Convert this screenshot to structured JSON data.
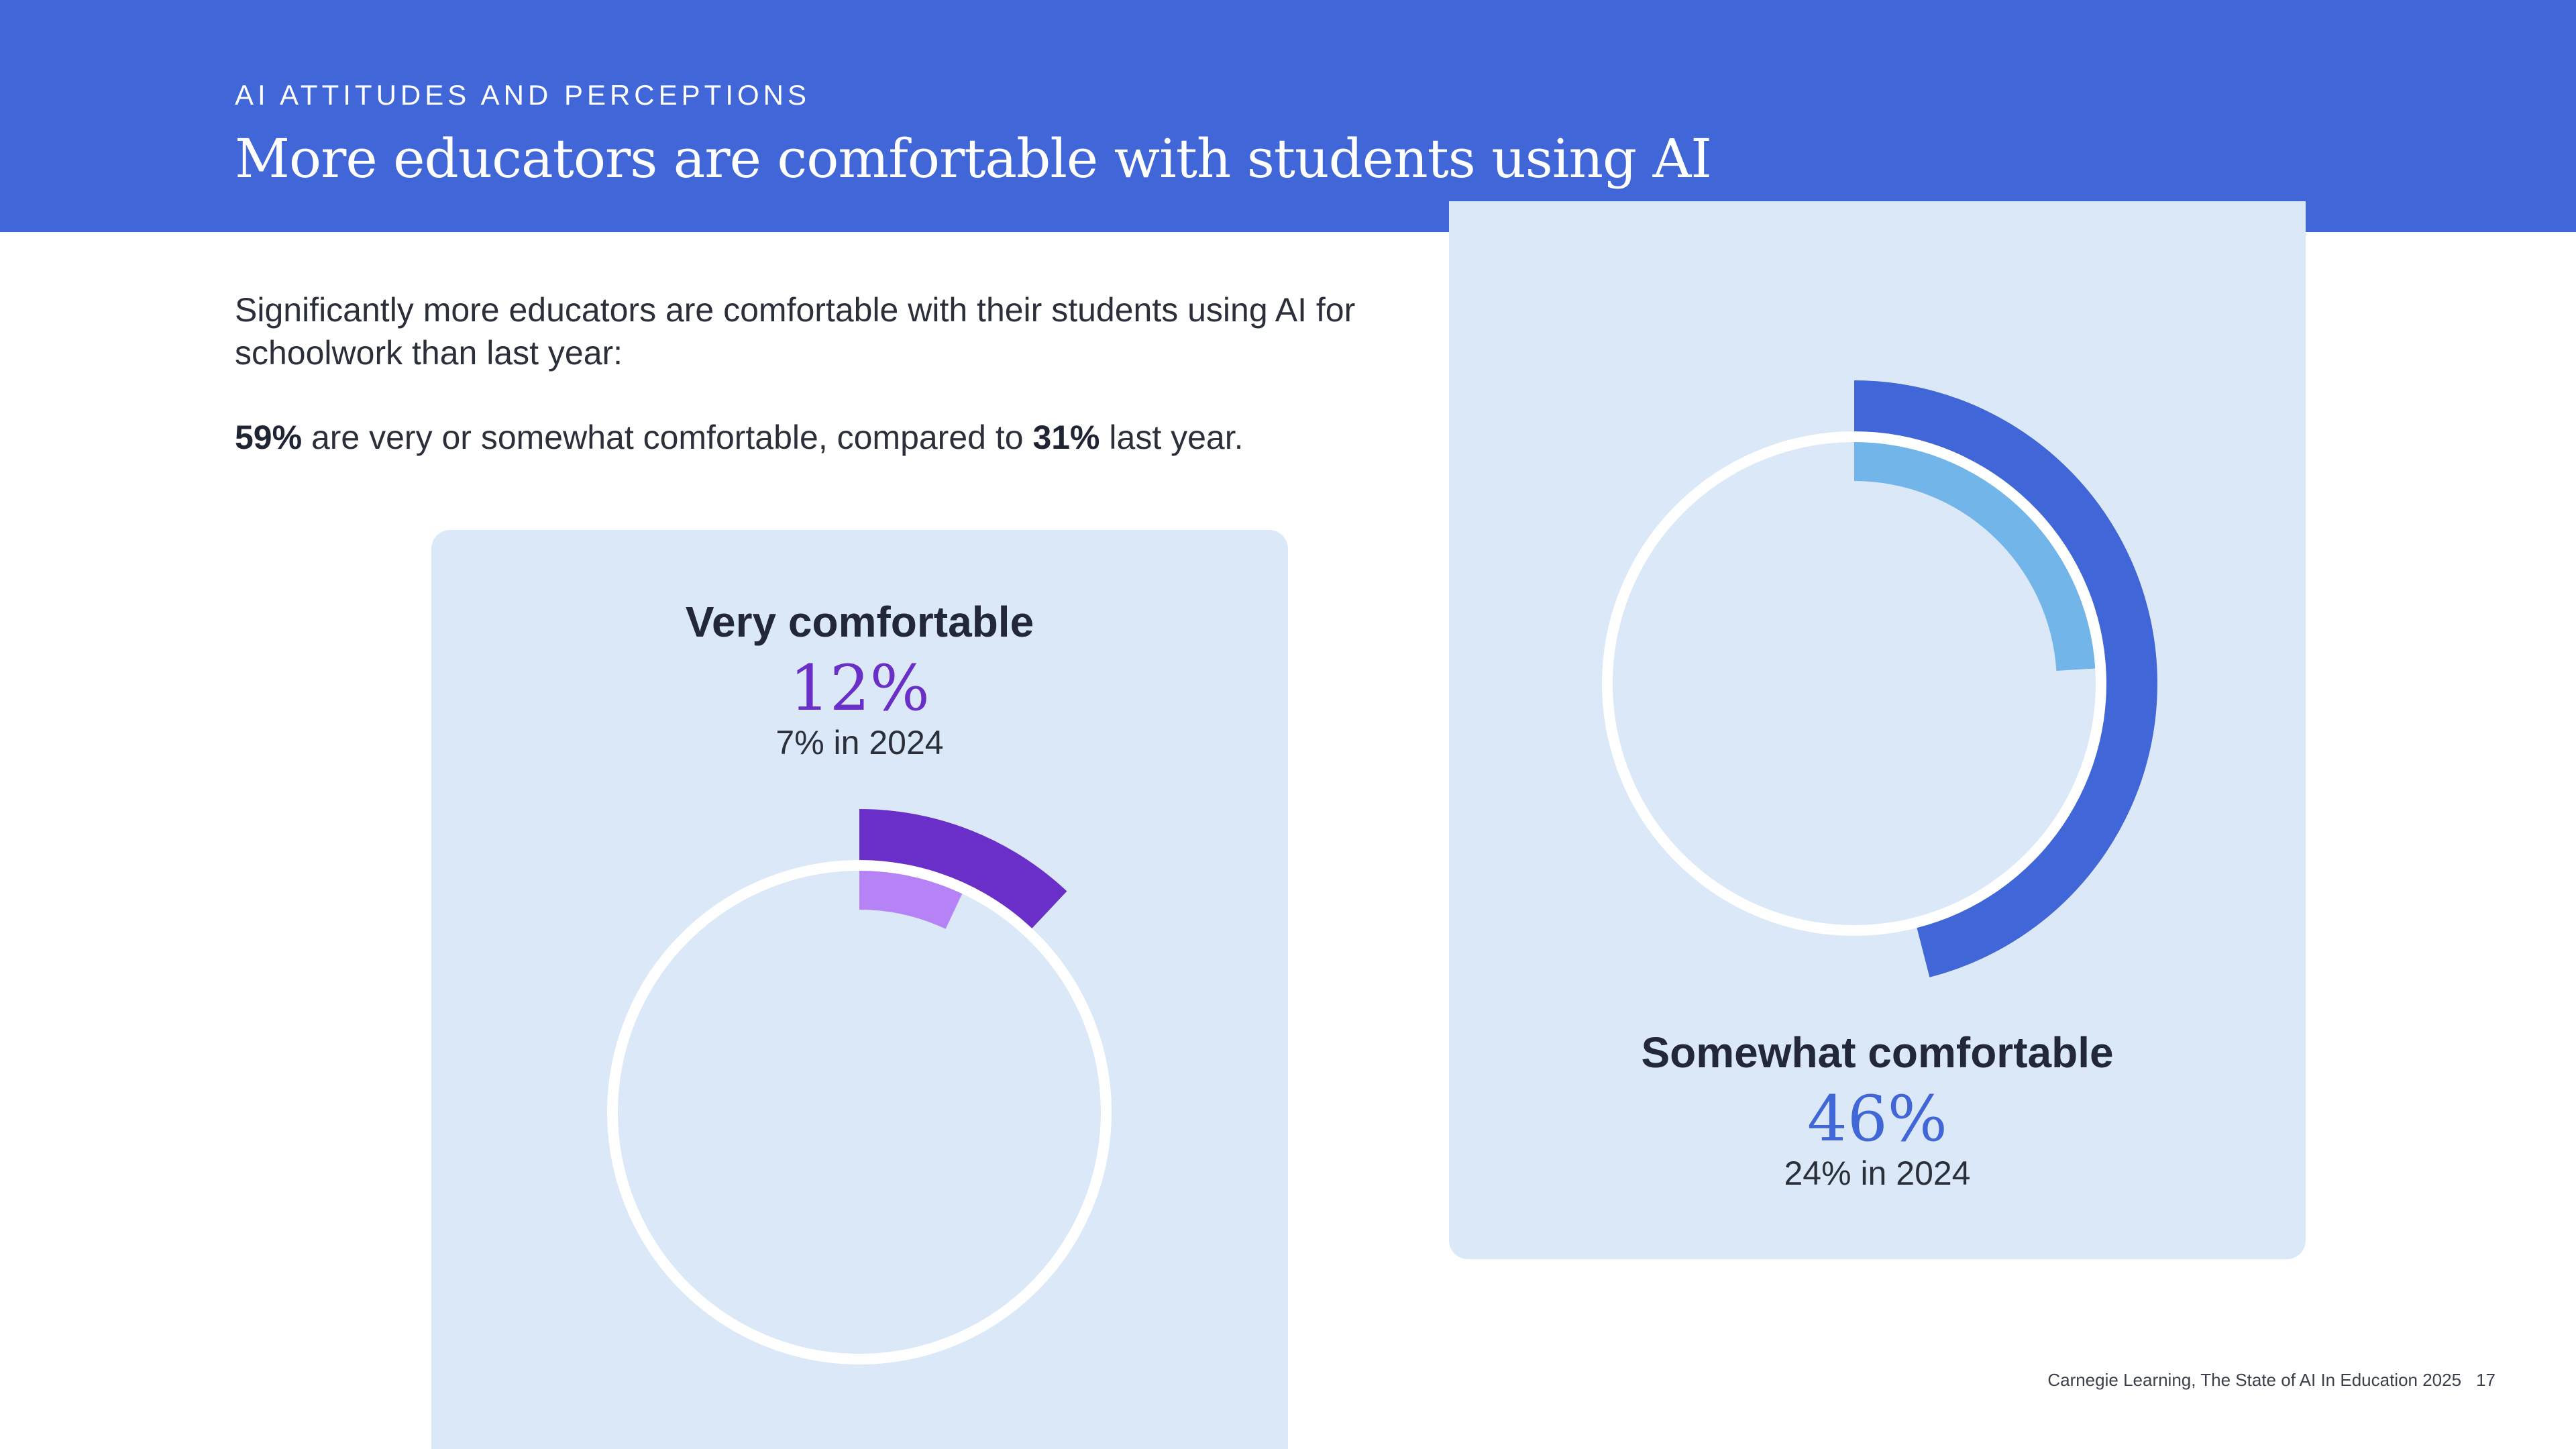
{
  "header": {
    "eyebrow": "AI ATTITUDES AND PERCEPTIONS",
    "title": "More educators are comfortable with students using AI"
  },
  "intro": {
    "line1": "Significantly more educators are comfortable with their students using AI for schoolwork than last year:",
    "stat1": "59%",
    "mid": " are very or somewhat comfortable, compared to ",
    "stat2": "31%",
    "end": " last year."
  },
  "chart_data": [
    {
      "type": "pie",
      "label": "Very comfortable",
      "value_text": "12%",
      "value": 12,
      "previous_text": "7% in 2024",
      "previous_value": 7,
      "colors": {
        "current": "#6a2fc9",
        "previous": "#b583f5",
        "ring": "#ffffff"
      }
    },
    {
      "type": "pie",
      "label": "Somewhat comfortable",
      "value_text": "46%",
      "value": 46,
      "previous_text": "24% in 2024",
      "previous_value": 24,
      "colors": {
        "current": "#4166d8",
        "previous": "#72b5e8",
        "ring": "#ffffff"
      }
    }
  ],
  "footer": {
    "source": "Carnegie Learning, The State of AI In Education 2025",
    "page": "17"
  }
}
